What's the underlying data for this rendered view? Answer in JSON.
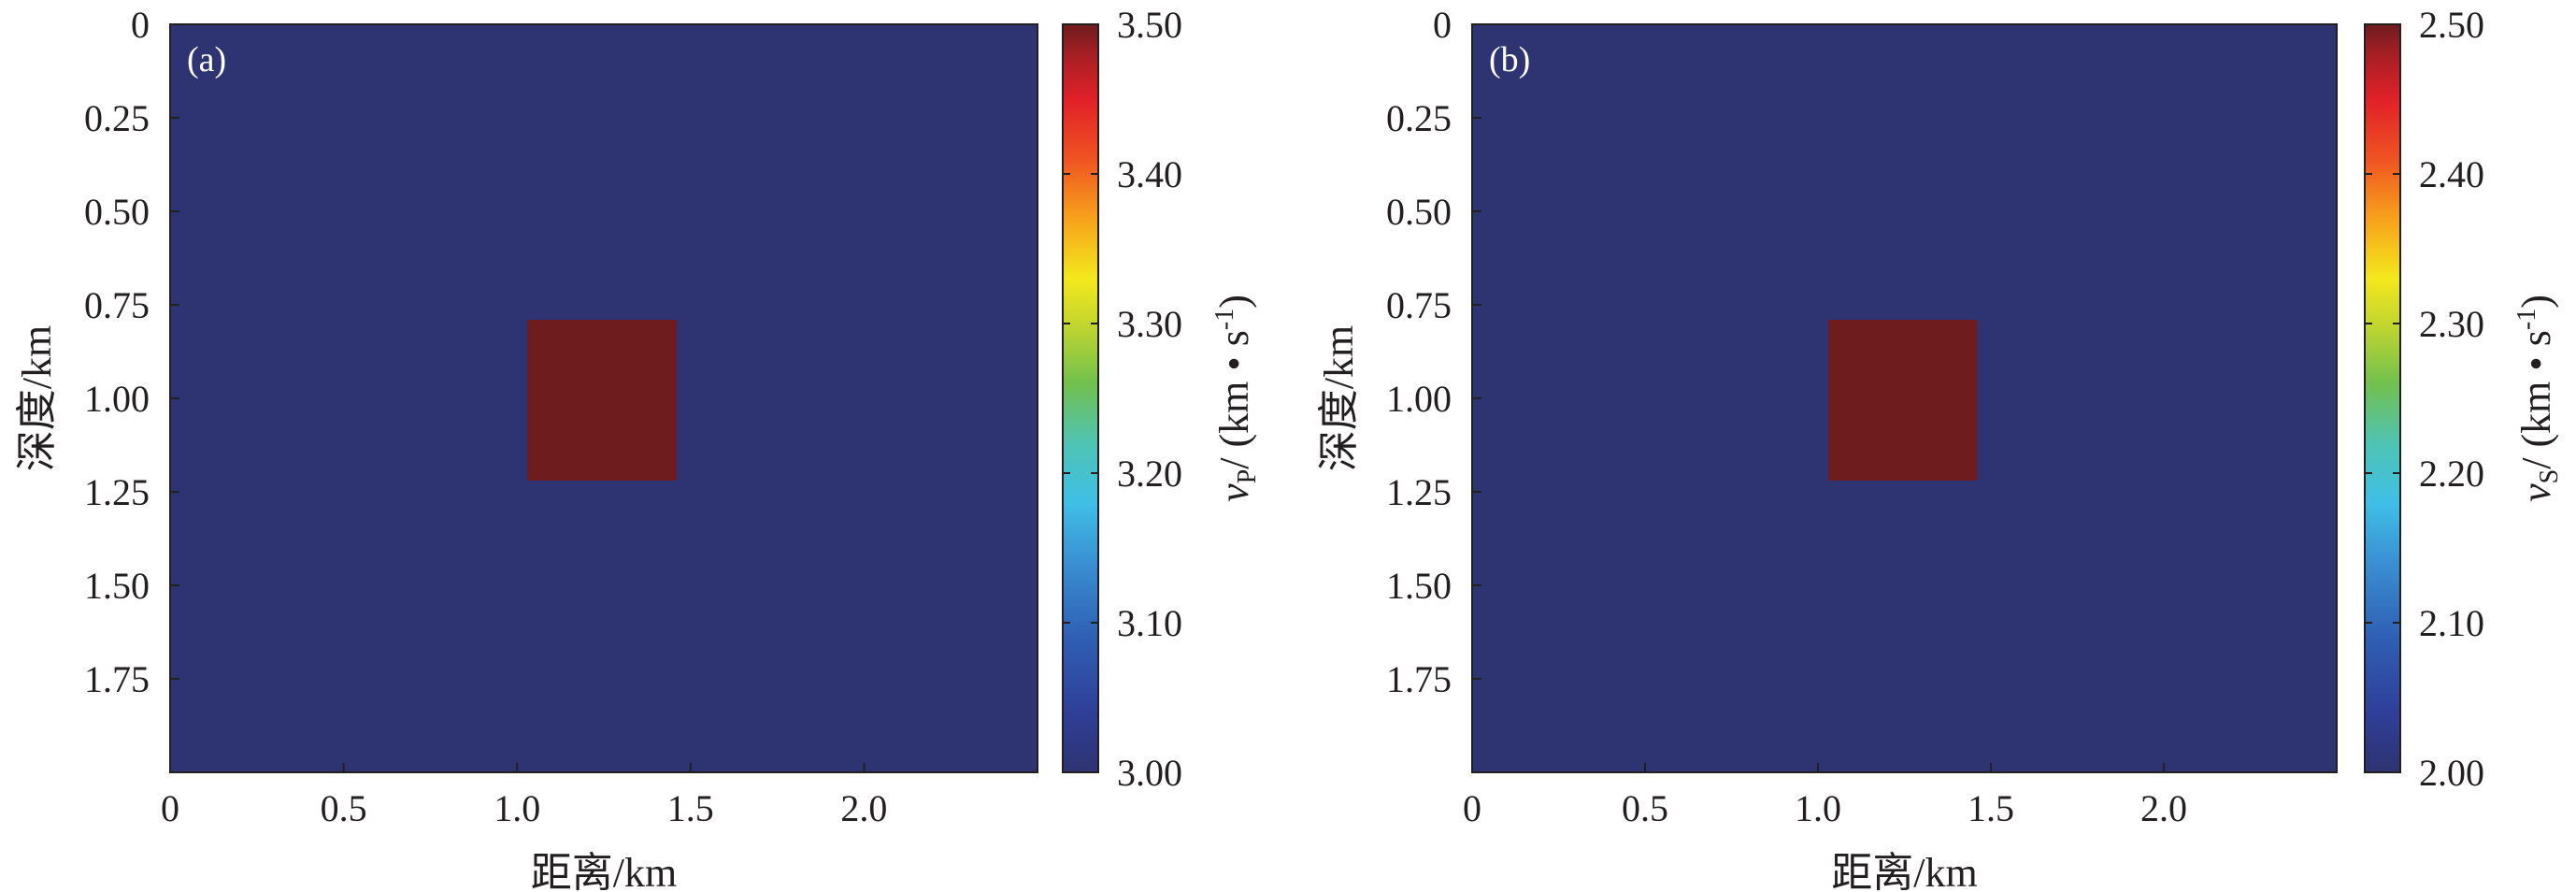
{
  "chart_data": [
    {
      "type": "heatmap",
      "panel_label": "(a)",
      "xlabel": "距离/km",
      "ylabel": "深度/km",
      "xlim": [
        0,
        2.5
      ],
      "ylim": [
        0,
        2.0
      ],
      "y_inverted": true,
      "x_ticks": [
        "0",
        "0.5",
        "1.0",
        "1.5",
        "2.0"
      ],
      "x_tick_values": [
        0,
        0.5,
        1.0,
        1.5,
        2.0
      ],
      "y_ticks": [
        "0",
        "0.25",
        "0.50",
        "0.75",
        "1.00",
        "1.25",
        "1.50",
        "1.75"
      ],
      "y_tick_values": [
        0,
        0.25,
        0.5,
        0.75,
        1.0,
        1.25,
        1.5,
        1.75
      ],
      "background_value": 3.0,
      "anomaly": {
        "x_range": [
          1.03,
          1.46
        ],
        "depth_range": [
          0.79,
          1.22
        ],
        "value": 3.5
      },
      "colorbar": {
        "label_var": "v",
        "label_sub": "P",
        "label_unit": "/ (km • s",
        "label_sup": "-1",
        "label_close": ")",
        "range": [
          3.0,
          3.5
        ],
        "ticks": [
          "3.00",
          "3.10",
          "3.20",
          "3.30",
          "3.40",
          "3.50"
        ],
        "tick_values": [
          3.0,
          3.1,
          3.2,
          3.3,
          3.4,
          3.5
        ]
      }
    },
    {
      "type": "heatmap",
      "panel_label": "(b)",
      "xlabel": "距离/km",
      "ylabel": "深度/km",
      "xlim": [
        0,
        2.5
      ],
      "ylim": [
        0,
        2.0
      ],
      "y_inverted": true,
      "x_ticks": [
        "0",
        "0.5",
        "1.0",
        "1.5",
        "2.0"
      ],
      "x_tick_values": [
        0,
        0.5,
        1.0,
        1.5,
        2.0
      ],
      "y_ticks": [
        "0",
        "0.25",
        "0.50",
        "0.75",
        "1.00",
        "1.25",
        "1.50",
        "1.75"
      ],
      "y_tick_values": [
        0,
        0.25,
        0.5,
        0.75,
        1.0,
        1.25,
        1.5,
        1.75
      ],
      "background_value": 2.0,
      "anomaly": {
        "x_range": [
          1.03,
          1.46
        ],
        "depth_range": [
          0.79,
          1.22
        ],
        "value": 2.5
      },
      "colorbar": {
        "label_var": "v",
        "label_sub": "S",
        "label_unit": "/ (km • s",
        "label_sup": "-1",
        "label_close": ")",
        "range": [
          2.0,
          2.5
        ],
        "ticks": [
          "2.00",
          "2.10",
          "2.20",
          "2.30",
          "2.40",
          "2.50"
        ],
        "tick_values": [
          2.0,
          2.1,
          2.2,
          2.3,
          2.4,
          2.5
        ]
      }
    }
  ],
  "colors": {
    "low": "#2e3371",
    "high": "#6e1c1e",
    "axis": "#231f20"
  }
}
